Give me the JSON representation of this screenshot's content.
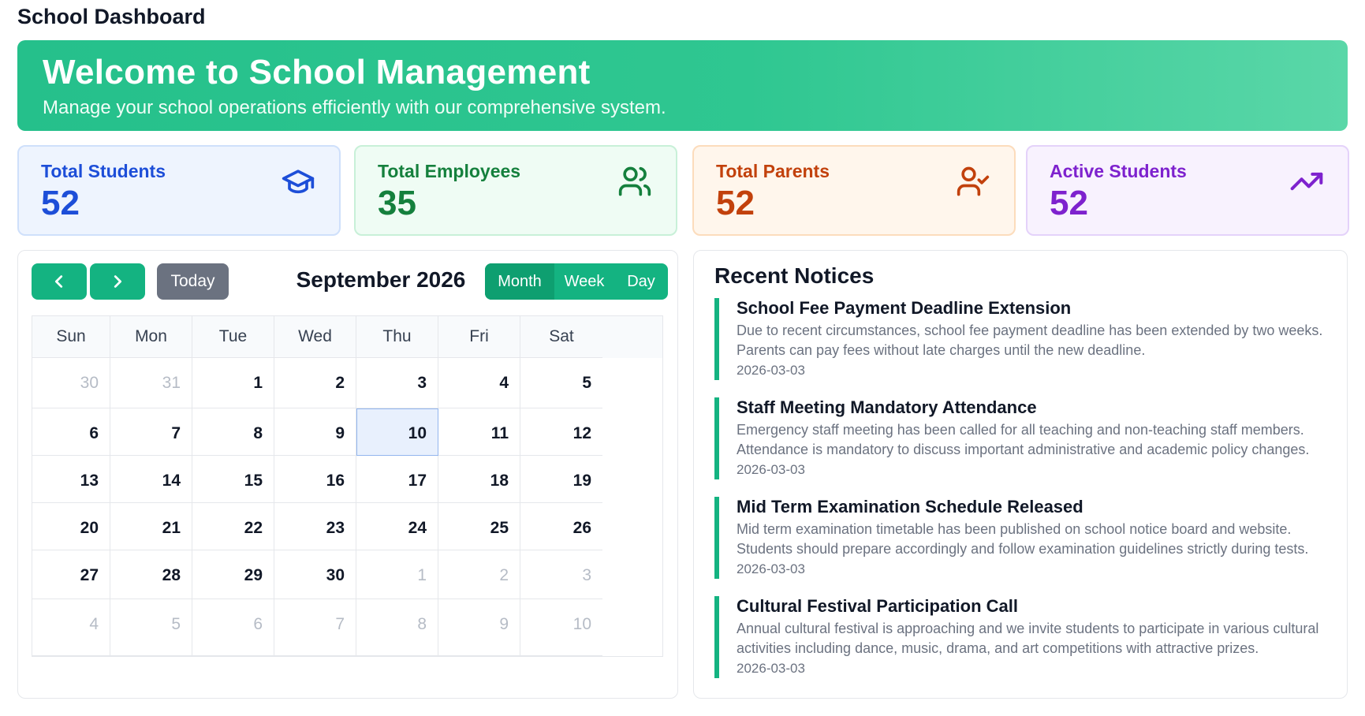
{
  "page": {
    "title": "School Dashboard"
  },
  "banner": {
    "title": "Welcome to School Management",
    "subtitle": "Manage your school operations efficiently with our comprehensive system."
  },
  "stats": [
    {
      "label": "Total Students",
      "value": "52",
      "icon": "graduation-cap-icon",
      "color": "#1d4ed8",
      "bg": "#eef4fe",
      "border": "#cfe0fb"
    },
    {
      "label": "Total Employees",
      "value": "35",
      "icon": "users-icon",
      "color": "#15803d",
      "bg": "#effcf4",
      "border": "#c8f0d8"
    },
    {
      "label": "Total Parents",
      "value": "52",
      "icon": "user-check-icon",
      "color": "#c2410c",
      "bg": "#fff6ec",
      "border": "#fcdcbc"
    },
    {
      "label": "Active Students",
      "value": "52",
      "icon": "trending-up-icon",
      "color": "#7e22ce",
      "bg": "#f8f2fe",
      "border": "#e4d2fa"
    }
  ],
  "calendar": {
    "prev_icon": "chevron-left-icon",
    "next_icon": "chevron-right-icon",
    "today_label": "Today",
    "title": "September 2026",
    "views": [
      "Month",
      "Week",
      "Day"
    ],
    "active_view": "Month",
    "weekdays": [
      "Sun",
      "Mon",
      "Tue",
      "Wed",
      "Thu",
      "Fri",
      "Sat"
    ],
    "today": "10",
    "weeks": [
      [
        {
          "d": "30",
          "o": true
        },
        {
          "d": "31",
          "o": true
        },
        {
          "d": "1"
        },
        {
          "d": "2"
        },
        {
          "d": "3"
        },
        {
          "d": "4"
        },
        {
          "d": "5"
        }
      ],
      [
        {
          "d": "6"
        },
        {
          "d": "7"
        },
        {
          "d": "8"
        },
        {
          "d": "9"
        },
        {
          "d": "10"
        },
        {
          "d": "11"
        },
        {
          "d": "12"
        }
      ],
      [
        {
          "d": "13"
        },
        {
          "d": "14"
        },
        {
          "d": "15"
        },
        {
          "d": "16"
        },
        {
          "d": "17"
        },
        {
          "d": "18"
        },
        {
          "d": "19"
        }
      ],
      [
        {
          "d": "20"
        },
        {
          "d": "21"
        },
        {
          "d": "22"
        },
        {
          "d": "23"
        },
        {
          "d": "24"
        },
        {
          "d": "25"
        },
        {
          "d": "26"
        }
      ],
      [
        {
          "d": "27"
        },
        {
          "d": "28"
        },
        {
          "d": "29"
        },
        {
          "d": "30"
        },
        {
          "d": "1",
          "o": true
        },
        {
          "d": "2",
          "o": true
        },
        {
          "d": "3",
          "o": true
        }
      ],
      [
        {
          "d": "4",
          "o": true
        },
        {
          "d": "5",
          "o": true
        },
        {
          "d": "6",
          "o": true
        },
        {
          "d": "7",
          "o": true
        },
        {
          "d": "8",
          "o": true
        },
        {
          "d": "9",
          "o": true
        },
        {
          "d": "10",
          "o": true
        }
      ]
    ]
  },
  "notices": {
    "heading": "Recent Notices",
    "items": [
      {
        "title": "School Fee Payment Deadline Extension",
        "body": "Due to recent circumstances, school fee payment deadline has been extended by two weeks. Parents can pay fees without late charges until the new deadline.",
        "date": "2026-03-03"
      },
      {
        "title": "Staff Meeting Mandatory Attendance",
        "body": "Emergency staff meeting has been called for all teaching and non-teaching staff members. Attendance is mandatory to discuss important administrative and academic policy changes.",
        "date": "2026-03-03"
      },
      {
        "title": "Mid Term Examination Schedule Released",
        "body": "Mid term examination timetable has been published on school notice board and website. Students should prepare accordingly and follow examination guidelines strictly during tests.",
        "date": "2026-03-03"
      },
      {
        "title": "Cultural Festival Participation Call",
        "body": "Annual cultural festival is approaching and we invite students to participate in various cultural activities including dance, music, drama, and art competitions with attractive prizes.",
        "date": "2026-03-03"
      }
    ]
  }
}
